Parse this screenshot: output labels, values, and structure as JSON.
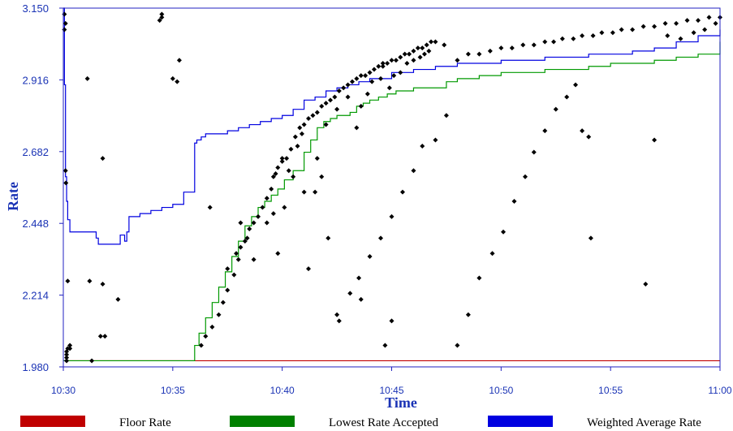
{
  "chart_data": {
    "type": "scatter",
    "xlabel": "Time",
    "ylabel": "Rate",
    "x_ticks": [
      "10:30",
      "10:35",
      "10:40",
      "10:45",
      "10:50",
      "10:55",
      "11:00"
    ],
    "x_range": [
      0,
      30
    ],
    "y_ticks": [
      "1.980",
      "2.214",
      "2.448",
      "2.682",
      "2.916",
      "3.150"
    ],
    "y_range": [
      1.98,
      3.15
    ],
    "grid": false,
    "legend_position": "bottom",
    "legend": [
      {
        "label": "Floor Rate",
        "color": "#c00000"
      },
      {
        "label": "Lowest Rate Accepted",
        "color": "#008000"
      },
      {
        "label": "Weighted Average Rate",
        "color": "#0000e0"
      }
    ],
    "colors": {
      "floor": "#c00000",
      "lowest": "#009900",
      "weighted": "#0000e0",
      "bids": "#000000",
      "frame": "#2020c0",
      "text": "#1a33b5"
    },
    "series": [
      {
        "name": "Floor Rate",
        "x": [
          0,
          30
        ],
        "y": [
          2.0,
          2.0
        ]
      },
      {
        "name": "Lowest Rate Accepted",
        "x": [
          0,
          5.9,
          6.0,
          6.2,
          6.5,
          6.8,
          7.1,
          7.4,
          7.7,
          8.0,
          8.3,
          8.6,
          8.9,
          9.2,
          9.5,
          9.8,
          10.1,
          10.5,
          11.0,
          11.3,
          11.6,
          11.9,
          12.2,
          12.5,
          12.8,
          13.1,
          13.4,
          13.7,
          14.0,
          14.4,
          14.8,
          15.2,
          15.6,
          16.0,
          16.5,
          17.0,
          17.5,
          18.0,
          19.0,
          20.0,
          21.0,
          22.0,
          23.0,
          24.0,
          25.0,
          26.0,
          27.0,
          28.0,
          29.0,
          30.0
        ],
        "y": [
          2.0,
          2.0,
          2.05,
          2.09,
          2.14,
          2.19,
          2.24,
          2.29,
          2.34,
          2.39,
          2.44,
          2.47,
          2.5,
          2.52,
          2.54,
          2.56,
          2.59,
          2.62,
          2.68,
          2.72,
          2.76,
          2.78,
          2.79,
          2.8,
          2.8,
          2.81,
          2.83,
          2.84,
          2.85,
          2.86,
          2.87,
          2.88,
          2.88,
          2.89,
          2.89,
          2.89,
          2.91,
          2.92,
          2.93,
          2.94,
          2.94,
          2.95,
          2.95,
          2.96,
          2.97,
          2.97,
          2.98,
          2.99,
          3.0,
          3.04
        ]
      },
      {
        "name": "Weighted Average Rate",
        "x": [
          0.0,
          0.05,
          0.1,
          0.15,
          0.2,
          0.3,
          0.5,
          1.0,
          1.5,
          1.6,
          2.0,
          2.5,
          2.6,
          2.8,
          2.9,
          3.0,
          3.5,
          4.0,
          4.5,
          5.0,
          5.5,
          6.0,
          6.1,
          6.3,
          6.5,
          7.0,
          7.5,
          8.0,
          8.5,
          9.0,
          9.5,
          10.0,
          10.5,
          11.0,
          11.5,
          12.0,
          12.5,
          13.0,
          13.5,
          14.0,
          15.0,
          16.0,
          17.0,
          18.0,
          19.0,
          20.0,
          21.0,
          22.0,
          23.0,
          24.0,
          25.0,
          26.0,
          27.0,
          28.0,
          29.0,
          30.0
        ],
        "y": [
          3.15,
          2.9,
          2.6,
          2.52,
          2.46,
          2.42,
          2.42,
          2.42,
          2.4,
          2.38,
          2.38,
          2.38,
          2.41,
          2.39,
          2.42,
          2.47,
          2.48,
          2.49,
          2.5,
          2.51,
          2.55,
          2.71,
          2.72,
          2.73,
          2.74,
          2.74,
          2.75,
          2.76,
          2.77,
          2.78,
          2.79,
          2.8,
          2.82,
          2.85,
          2.86,
          2.88,
          2.89,
          2.9,
          2.91,
          2.92,
          2.94,
          2.95,
          2.96,
          2.97,
          2.97,
          2.98,
          2.98,
          2.99,
          2.99,
          3.0,
          3.0,
          3.01,
          3.02,
          3.04,
          3.06,
          3.08
        ]
      },
      {
        "name": "bids",
        "x": [
          0.05,
          0.05,
          0.1,
          0.1,
          0.12,
          0.15,
          0.15,
          0.15,
          0.15,
          0.2,
          0.2,
          0.3,
          0.3,
          1.1,
          1.2,
          1.3,
          1.7,
          1.8,
          1.8,
          1.9,
          2.5,
          4.5,
          4.5,
          4.4,
          5.0,
          5.2,
          5.3,
          6.3,
          6.5,
          6.8,
          7.1,
          7.3,
          7.5,
          7.8,
          8.0,
          8.1,
          8.3,
          8.5,
          8.7,
          8.9,
          9.1,
          9.3,
          9.5,
          9.6,
          9.8,
          10.0,
          10.2,
          10.4,
          10.6,
          10.8,
          11.0,
          11.2,
          11.4,
          11.6,
          11.8,
          12.0,
          12.2,
          12.4,
          12.6,
          12.8,
          13.0,
          13.2,
          13.4,
          13.6,
          13.8,
          14.0,
          14.2,
          14.4,
          14.6,
          14.8,
          15.0,
          15.2,
          15.4,
          15.6,
          15.8,
          16.0,
          16.2,
          16.4,
          16.6,
          16.8,
          17.0,
          7.5,
          7.9,
          8.4,
          8.7,
          9.3,
          9.6,
          9.7,
          10.0,
          10.1,
          10.3,
          10.7,
          10.9,
          11.5,
          11.8,
          12.0,
          12.5,
          13.0,
          13.4,
          13.6,
          13.9,
          14.1,
          14.5,
          14.6,
          14.9,
          15.1,
          15.4,
          15.7,
          16.0,
          16.3,
          16.5,
          16.7,
          17.4,
          18.0,
          18.5,
          19.0,
          19.5,
          20.0,
          20.5,
          21.0,
          21.5,
          22.0,
          22.4,
          22.8,
          23.3,
          23.7,
          24.2,
          24.6,
          25.1,
          25.5,
          26.0,
          26.5,
          27.0,
          27.5,
          28.0,
          28.5,
          29.0,
          29.5,
          30.0,
          10.5,
          11.0,
          11.6,
          12.1,
          12.6,
          13.1,
          13.5,
          14.0,
          14.5,
          15.0,
          15.5,
          16.0,
          16.4,
          17.0,
          17.5,
          18.0,
          18.5,
          19.0,
          19.6,
          20.1,
          20.6,
          21.1,
          21.5,
          22.0,
          22.5,
          23.0,
          23.4,
          23.7,
          24.0,
          26.6,
          24.1,
          15.0,
          14.7,
          13.6,
          12.5,
          11.2,
          9.8,
          8.1,
          6.7,
          27.6,
          28.2,
          28.8,
          29.3,
          29.8,
          27.0
        ],
        "y": [
          3.13,
          3.08,
          3.1,
          2.62,
          2.58,
          2.03,
          2.01,
          2.0,
          2.02,
          2.04,
          2.26,
          2.04,
          2.05,
          2.92,
          2.26,
          2.0,
          2.08,
          2.66,
          2.25,
          2.08,
          2.2,
          3.13,
          3.12,
          3.11,
          2.92,
          2.91,
          2.98,
          2.05,
          2.08,
          2.11,
          2.15,
          2.19,
          2.23,
          2.28,
          2.33,
          2.37,
          2.39,
          2.43,
          2.45,
          2.47,
          2.5,
          2.53,
          2.56,
          2.6,
          2.63,
          2.65,
          2.66,
          2.69,
          2.73,
          2.76,
          2.77,
          2.79,
          2.8,
          2.81,
          2.83,
          2.84,
          2.85,
          2.86,
          2.88,
          2.89,
          2.9,
          2.91,
          2.92,
          2.93,
          2.93,
          2.94,
          2.95,
          2.96,
          2.97,
          2.97,
          2.98,
          2.98,
          2.99,
          3.0,
          3.0,
          3.01,
          3.02,
          3.02,
          3.03,
          3.04,
          3.04,
          2.3,
          2.35,
          2.4,
          2.33,
          2.45,
          2.48,
          2.61,
          2.66,
          2.5,
          2.62,
          2.7,
          2.74,
          2.55,
          2.6,
          2.77,
          2.82,
          2.86,
          2.76,
          2.83,
          2.87,
          2.91,
          2.92,
          2.96,
          2.89,
          2.93,
          2.94,
          2.97,
          2.98,
          2.99,
          3.0,
          3.01,
          3.03,
          2.98,
          3.0,
          3.0,
          3.01,
          3.02,
          3.02,
          3.03,
          3.03,
          3.04,
          3.04,
          3.05,
          3.05,
          3.06,
          3.06,
          3.07,
          3.07,
          3.08,
          3.08,
          3.09,
          3.09,
          3.1,
          3.1,
          3.11,
          3.11,
          3.12,
          3.12,
          2.6,
          2.55,
          2.66,
          2.4,
          2.13,
          2.22,
          2.27,
          2.34,
          2.4,
          2.47,
          2.55,
          2.62,
          2.7,
          2.72,
          2.8,
          2.05,
          2.15,
          2.27,
          2.35,
          2.42,
          2.52,
          2.6,
          2.68,
          2.75,
          2.82,
          2.86,
          2.9,
          2.75,
          2.73,
          2.25,
          2.4,
          2.13,
          2.05,
          2.2,
          2.15,
          2.3,
          2.35,
          2.45,
          2.5,
          3.06,
          3.05,
          3.07,
          3.08,
          3.1,
          2.72
        ]
      }
    ]
  }
}
